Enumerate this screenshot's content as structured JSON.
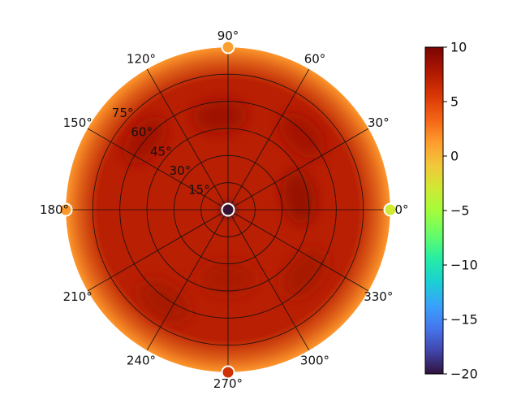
{
  "chart_data": {
    "type": "heatmap",
    "projection": "polar",
    "title": "",
    "colormap": "turbo",
    "theta_ticks": [
      "0°",
      "30°",
      "60°",
      "90°",
      "120°",
      "150°",
      "180°",
      "210°",
      "240°",
      "270°",
      "300°",
      "330°"
    ],
    "theta_tick_values": [
      0,
      30,
      60,
      90,
      120,
      150,
      180,
      210,
      240,
      270,
      300,
      330
    ],
    "radial_ticks": [
      "15°",
      "30°",
      "45°",
      "60°",
      "75°"
    ],
    "radial_tick_values": [
      15,
      30,
      45,
      60,
      75
    ],
    "radial_range": [
      0,
      90
    ],
    "radial_label_angle": 135,
    "grid": true,
    "colorbar": {
      "range": [
        -20,
        10
      ],
      "ticks": [
        10,
        5,
        0,
        -5,
        -10,
        -15,
        -20
      ],
      "tick_labels": [
        "10",
        "5",
        "0",
        "−5",
        "−10",
        "−15",
        "−20"
      ],
      "position": "right"
    },
    "field": {
      "baseline_value": 7.2,
      "center_value": -20,
      "edge_value": 1.5,
      "dark_patches": [
        {
          "theta": 95,
          "r": 52,
          "value": 8.6
        },
        {
          "theta": 140,
          "r": 60,
          "value": 8.4
        },
        {
          "theta": 10,
          "r": 40,
          "value": 9.0
        },
        {
          "theta": 45,
          "r": 58,
          "value": 8.3
        },
        {
          "theta": 235,
          "r": 62,
          "value": 8.2
        },
        {
          "theta": 320,
          "r": 55,
          "value": 8.2
        },
        {
          "theta": 270,
          "r": 38,
          "value": 8.0
        }
      ],
      "edge_markers": [
        {
          "theta": 90,
          "value": 1.0
        },
        {
          "theta": 0,
          "value": -3.0
        },
        {
          "theta": 180,
          "value": 1.5
        },
        {
          "theta": 270,
          "value": 6.0
        }
      ]
    }
  }
}
